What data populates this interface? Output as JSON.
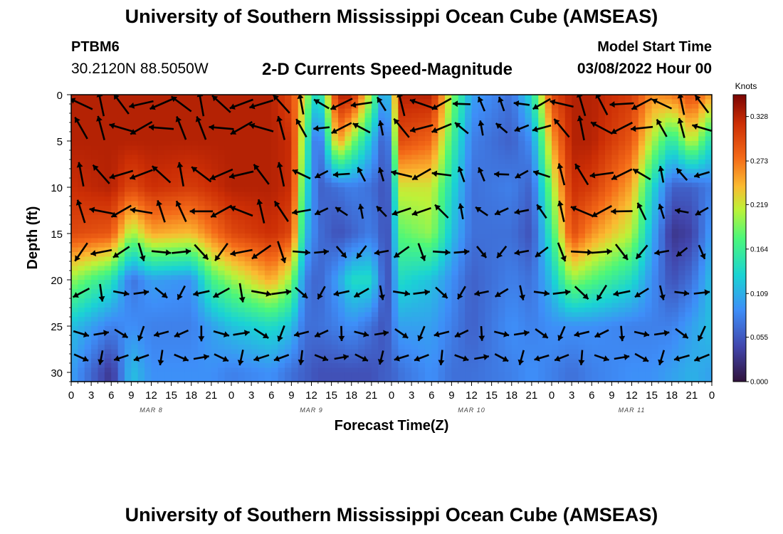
{
  "header": {
    "title": "University of Southern Mississippi Ocean Cube (AMSEAS)",
    "station": "PTBM6",
    "coords": "30.2120N  88.5050W",
    "subtitle": "2-D Currents Speed-Magnitude",
    "start_label": "Model Start Time",
    "start_value": "03/08/2022 Hour 00"
  },
  "footer": {
    "title": "University of Southern Mississippi Ocean Cube (AMSEAS)"
  },
  "chart_data": {
    "type": "heatmap",
    "title": "2-D Currents Speed-Magnitude",
    "xlabel": "Forecast Time(Z)",
    "ylabel": "Depth (ft)",
    "xlim_hours": [
      0,
      96
    ],
    "ylim_ft": [
      0,
      31
    ],
    "x_tick_labels": [
      "0",
      "3",
      "6",
      "9",
      "12",
      "15",
      "18",
      "21",
      "0",
      "3",
      "6",
      "9",
      "12",
      "15",
      "18",
      "21",
      "0",
      "3",
      "6",
      "9",
      "12",
      "15",
      "18",
      "21",
      "0",
      "3",
      "6",
      "9",
      "12",
      "15",
      "18",
      "21",
      "0"
    ],
    "date_labels": [
      {
        "label": "MAR 8",
        "hour": 12
      },
      {
        "label": "MAR 9",
        "hour": 36
      },
      {
        "label": "MAR 10",
        "hour": 60
      },
      {
        "label": "MAR 11",
        "hour": 84
      }
    ],
    "y_ticks": [
      0,
      5,
      10,
      15,
      20,
      25,
      30
    ],
    "colorbar": {
      "unit": "Knots",
      "vmin": 0.0,
      "vmax": 0.355,
      "ticks": [
        "0.328",
        "0.273",
        "0.219",
        "0.164",
        "0.109",
        "0.055",
        "0.000"
      ],
      "tick_values": [
        0.328,
        0.273,
        0.219,
        0.164,
        0.109,
        0.055,
        0.0
      ]
    },
    "speed_columns": [
      {
        "hour": 0,
        "depths": [
          0,
          5,
          10,
          15,
          20,
          25,
          30
        ],
        "speed": [
          0.33,
          0.33,
          0.32,
          0.3,
          0.2,
          0.12,
          0.1
        ]
      },
      {
        "hour": 6,
        "depths": [
          0,
          5,
          10,
          15,
          20,
          25,
          30
        ],
        "speed": [
          0.33,
          0.33,
          0.33,
          0.29,
          0.15,
          0.08,
          0.03
        ]
      },
      {
        "hour": 9,
        "depths": [
          0,
          5,
          10,
          15,
          20,
          25,
          30
        ],
        "speed": [
          0.33,
          0.33,
          0.3,
          0.2,
          0.07,
          0.09,
          0.12
        ]
      },
      {
        "hour": 12,
        "depths": [
          0,
          5,
          10,
          15,
          20,
          25,
          30
        ],
        "speed": [
          0.33,
          0.33,
          0.32,
          0.25,
          0.1,
          0.08,
          0.09
        ]
      },
      {
        "hour": 18,
        "depths": [
          0,
          5,
          10,
          15,
          20,
          25,
          30
        ],
        "speed": [
          0.33,
          0.33,
          0.31,
          0.24,
          0.09,
          0.08,
          0.09
        ]
      },
      {
        "hour": 21,
        "depths": [
          0,
          5,
          10,
          15,
          20,
          25,
          30
        ],
        "speed": [
          0.33,
          0.33,
          0.32,
          0.27,
          0.17,
          0.1,
          0.09
        ]
      },
      {
        "hour": 24,
        "depths": [
          0,
          5,
          10,
          15,
          20,
          25,
          30
        ],
        "speed": [
          0.33,
          0.33,
          0.33,
          0.3,
          0.2,
          0.12,
          0.08
        ]
      },
      {
        "hour": 30,
        "depths": [
          0,
          5,
          10,
          15,
          20,
          25,
          30
        ],
        "speed": [
          0.33,
          0.33,
          0.33,
          0.32,
          0.25,
          0.14,
          0.09
        ]
      },
      {
        "hour": 33,
        "depths": [
          0,
          5,
          10,
          15,
          20,
          25,
          30
        ],
        "speed": [
          0.3,
          0.32,
          0.32,
          0.3,
          0.2,
          0.12,
          0.07
        ]
      },
      {
        "hour": 35,
        "depths": [
          0,
          5,
          10,
          15,
          20,
          25,
          30
        ],
        "speed": [
          0.22,
          0.18,
          0.15,
          0.12,
          0.08,
          0.07,
          0.06
        ]
      },
      {
        "hour": 37,
        "depths": [
          0,
          5,
          10,
          15,
          20,
          25,
          30
        ],
        "speed": [
          0.12,
          0.05,
          0.06,
          0.07,
          0.06,
          0.07,
          0.05
        ]
      },
      {
        "hour": 40,
        "depths": [
          0,
          5,
          10,
          15,
          20,
          25,
          30
        ],
        "speed": [
          0.33,
          0.26,
          0.07,
          0.05,
          0.1,
          0.08,
          0.05
        ]
      },
      {
        "hour": 42,
        "depths": [
          0,
          5,
          10,
          15,
          20,
          25,
          30
        ],
        "speed": [
          0.33,
          0.2,
          0.08,
          0.06,
          0.14,
          0.09,
          0.05
        ]
      },
      {
        "hour": 45,
        "depths": [
          0,
          5,
          10,
          15,
          20,
          25,
          30
        ],
        "speed": [
          0.2,
          0.12,
          0.07,
          0.08,
          0.14,
          0.07,
          0.05
        ]
      },
      {
        "hour": 47,
        "depths": [
          0,
          5,
          10,
          15,
          20,
          25,
          30
        ],
        "speed": [
          0.08,
          0.05,
          0.05,
          0.05,
          0.05,
          0.05,
          0.06
        ]
      },
      {
        "hour": 48,
        "depths": [
          0,
          5,
          10,
          15,
          20,
          25,
          30
        ],
        "speed": [
          0.15,
          0.1,
          0.07,
          0.06,
          0.06,
          0.07,
          0.06
        ]
      },
      {
        "hour": 49,
        "depths": [
          0,
          5,
          10,
          15,
          20,
          25,
          30
        ],
        "speed": [
          0.33,
          0.3,
          0.22,
          0.18,
          0.14,
          0.1,
          0.07
        ]
      },
      {
        "hour": 54,
        "depths": [
          0,
          5,
          10,
          15,
          20,
          25,
          30
        ],
        "speed": [
          0.33,
          0.28,
          0.22,
          0.2,
          0.12,
          0.1,
          0.09
        ]
      },
      {
        "hour": 57,
        "depths": [
          0,
          5,
          10,
          15,
          20,
          25,
          30
        ],
        "speed": [
          0.2,
          0.17,
          0.14,
          0.12,
          0.09,
          0.08,
          0.07
        ]
      },
      {
        "hour": 60,
        "depths": [
          0,
          5,
          10,
          15,
          20,
          25,
          30
        ],
        "speed": [
          0.1,
          0.08,
          0.07,
          0.07,
          0.06,
          0.06,
          0.07
        ]
      },
      {
        "hour": 66,
        "depths": [
          0,
          5,
          10,
          15,
          20,
          25,
          30
        ],
        "speed": [
          0.07,
          0.06,
          0.08,
          0.07,
          0.08,
          0.09,
          0.08
        ]
      },
      {
        "hour": 69,
        "depths": [
          0,
          5,
          10,
          15,
          20,
          25,
          30
        ],
        "speed": [
          0.14,
          0.09,
          0.06,
          0.05,
          0.07,
          0.08,
          0.09
        ]
      },
      {
        "hour": 72,
        "depths": [
          0,
          5,
          10,
          15,
          20,
          25,
          30
        ],
        "speed": [
          0.3,
          0.25,
          0.2,
          0.16,
          0.12,
          0.09,
          0.08
        ]
      },
      {
        "hour": 75,
        "depths": [
          0,
          5,
          10,
          15,
          20,
          25,
          30
        ],
        "speed": [
          0.33,
          0.33,
          0.32,
          0.3,
          0.2,
          0.09,
          0.07
        ]
      },
      {
        "hour": 78,
        "depths": [
          0,
          5,
          10,
          15,
          20,
          25,
          30
        ],
        "speed": [
          0.33,
          0.33,
          0.31,
          0.26,
          0.18,
          0.09,
          0.08
        ]
      },
      {
        "hour": 84,
        "depths": [
          0,
          5,
          10,
          15,
          20,
          25,
          30
        ],
        "speed": [
          0.31,
          0.29,
          0.25,
          0.21,
          0.14,
          0.08,
          0.09
        ]
      },
      {
        "hour": 87,
        "depths": [
          0,
          5,
          10,
          15,
          20,
          25,
          30
        ],
        "speed": [
          0.26,
          0.21,
          0.14,
          0.11,
          0.09,
          0.08,
          0.09
        ]
      },
      {
        "hour": 90,
        "depths": [
          0,
          5,
          10,
          15,
          20,
          25,
          30
        ],
        "speed": [
          0.27,
          0.15,
          0.06,
          0.03,
          0.05,
          0.08,
          0.1
        ]
      },
      {
        "hour": 93,
        "depths": [
          0,
          5,
          10,
          15,
          20,
          25,
          30
        ],
        "speed": [
          0.3,
          0.22,
          0.06,
          0.04,
          0.07,
          0.1,
          0.11
        ]
      },
      {
        "hour": 96,
        "depths": [
          0,
          5,
          10,
          15,
          20,
          25,
          30
        ],
        "speed": [
          0.25,
          0.14,
          0.08,
          0.1,
          0.12,
          0.12,
          0.1
        ]
      }
    ],
    "vector_times": [
      1.5,
      4.5,
      7.5,
      10.5,
      13.5,
      16.5,
      19.5,
      22.5,
      25.5,
      28.5,
      31.5,
      34.5,
      37.5,
      40.5,
      43.5,
      46.5,
      49.5,
      52.5,
      55.5,
      58.5,
      61.5,
      64.5,
      67.5,
      70.5,
      73.5,
      76.5,
      79.5,
      82.5,
      85.5,
      88.5,
      91.5,
      94.5
    ],
    "vector_depths": [
      1,
      3.6,
      8.6,
      12.6,
      17,
      21.4,
      25.8,
      28.4
    ],
    "vector_note": "arrow directions are approximated; length scales with speed"
  }
}
